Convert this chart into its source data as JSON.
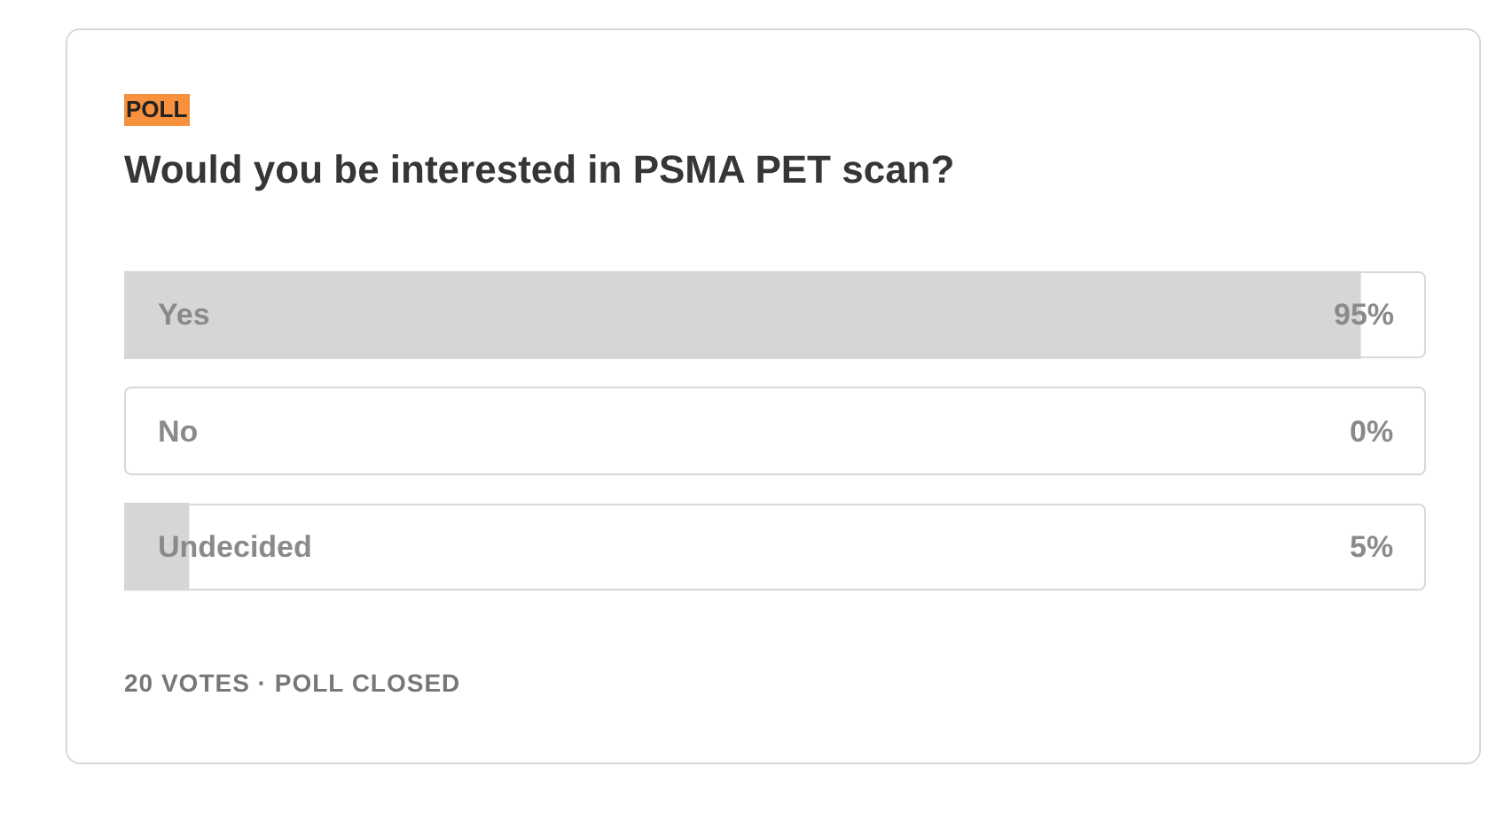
{
  "chart_data": {
    "type": "bar",
    "orientation": "horizontal",
    "subtitle": "POLL",
    "title": "Would you be interested in PSMA PET scan?",
    "categories": [
      "Yes",
      "No",
      "Undecided"
    ],
    "values": [
      95,
      0,
      5
    ],
    "value_labels": [
      "95%",
      "0%",
      "5%"
    ],
    "color": "#d6d6d6",
    "xlim": [
      0,
      100
    ],
    "annotations": [
      "20 VOTES · POLL CLOSED"
    ]
  }
}
